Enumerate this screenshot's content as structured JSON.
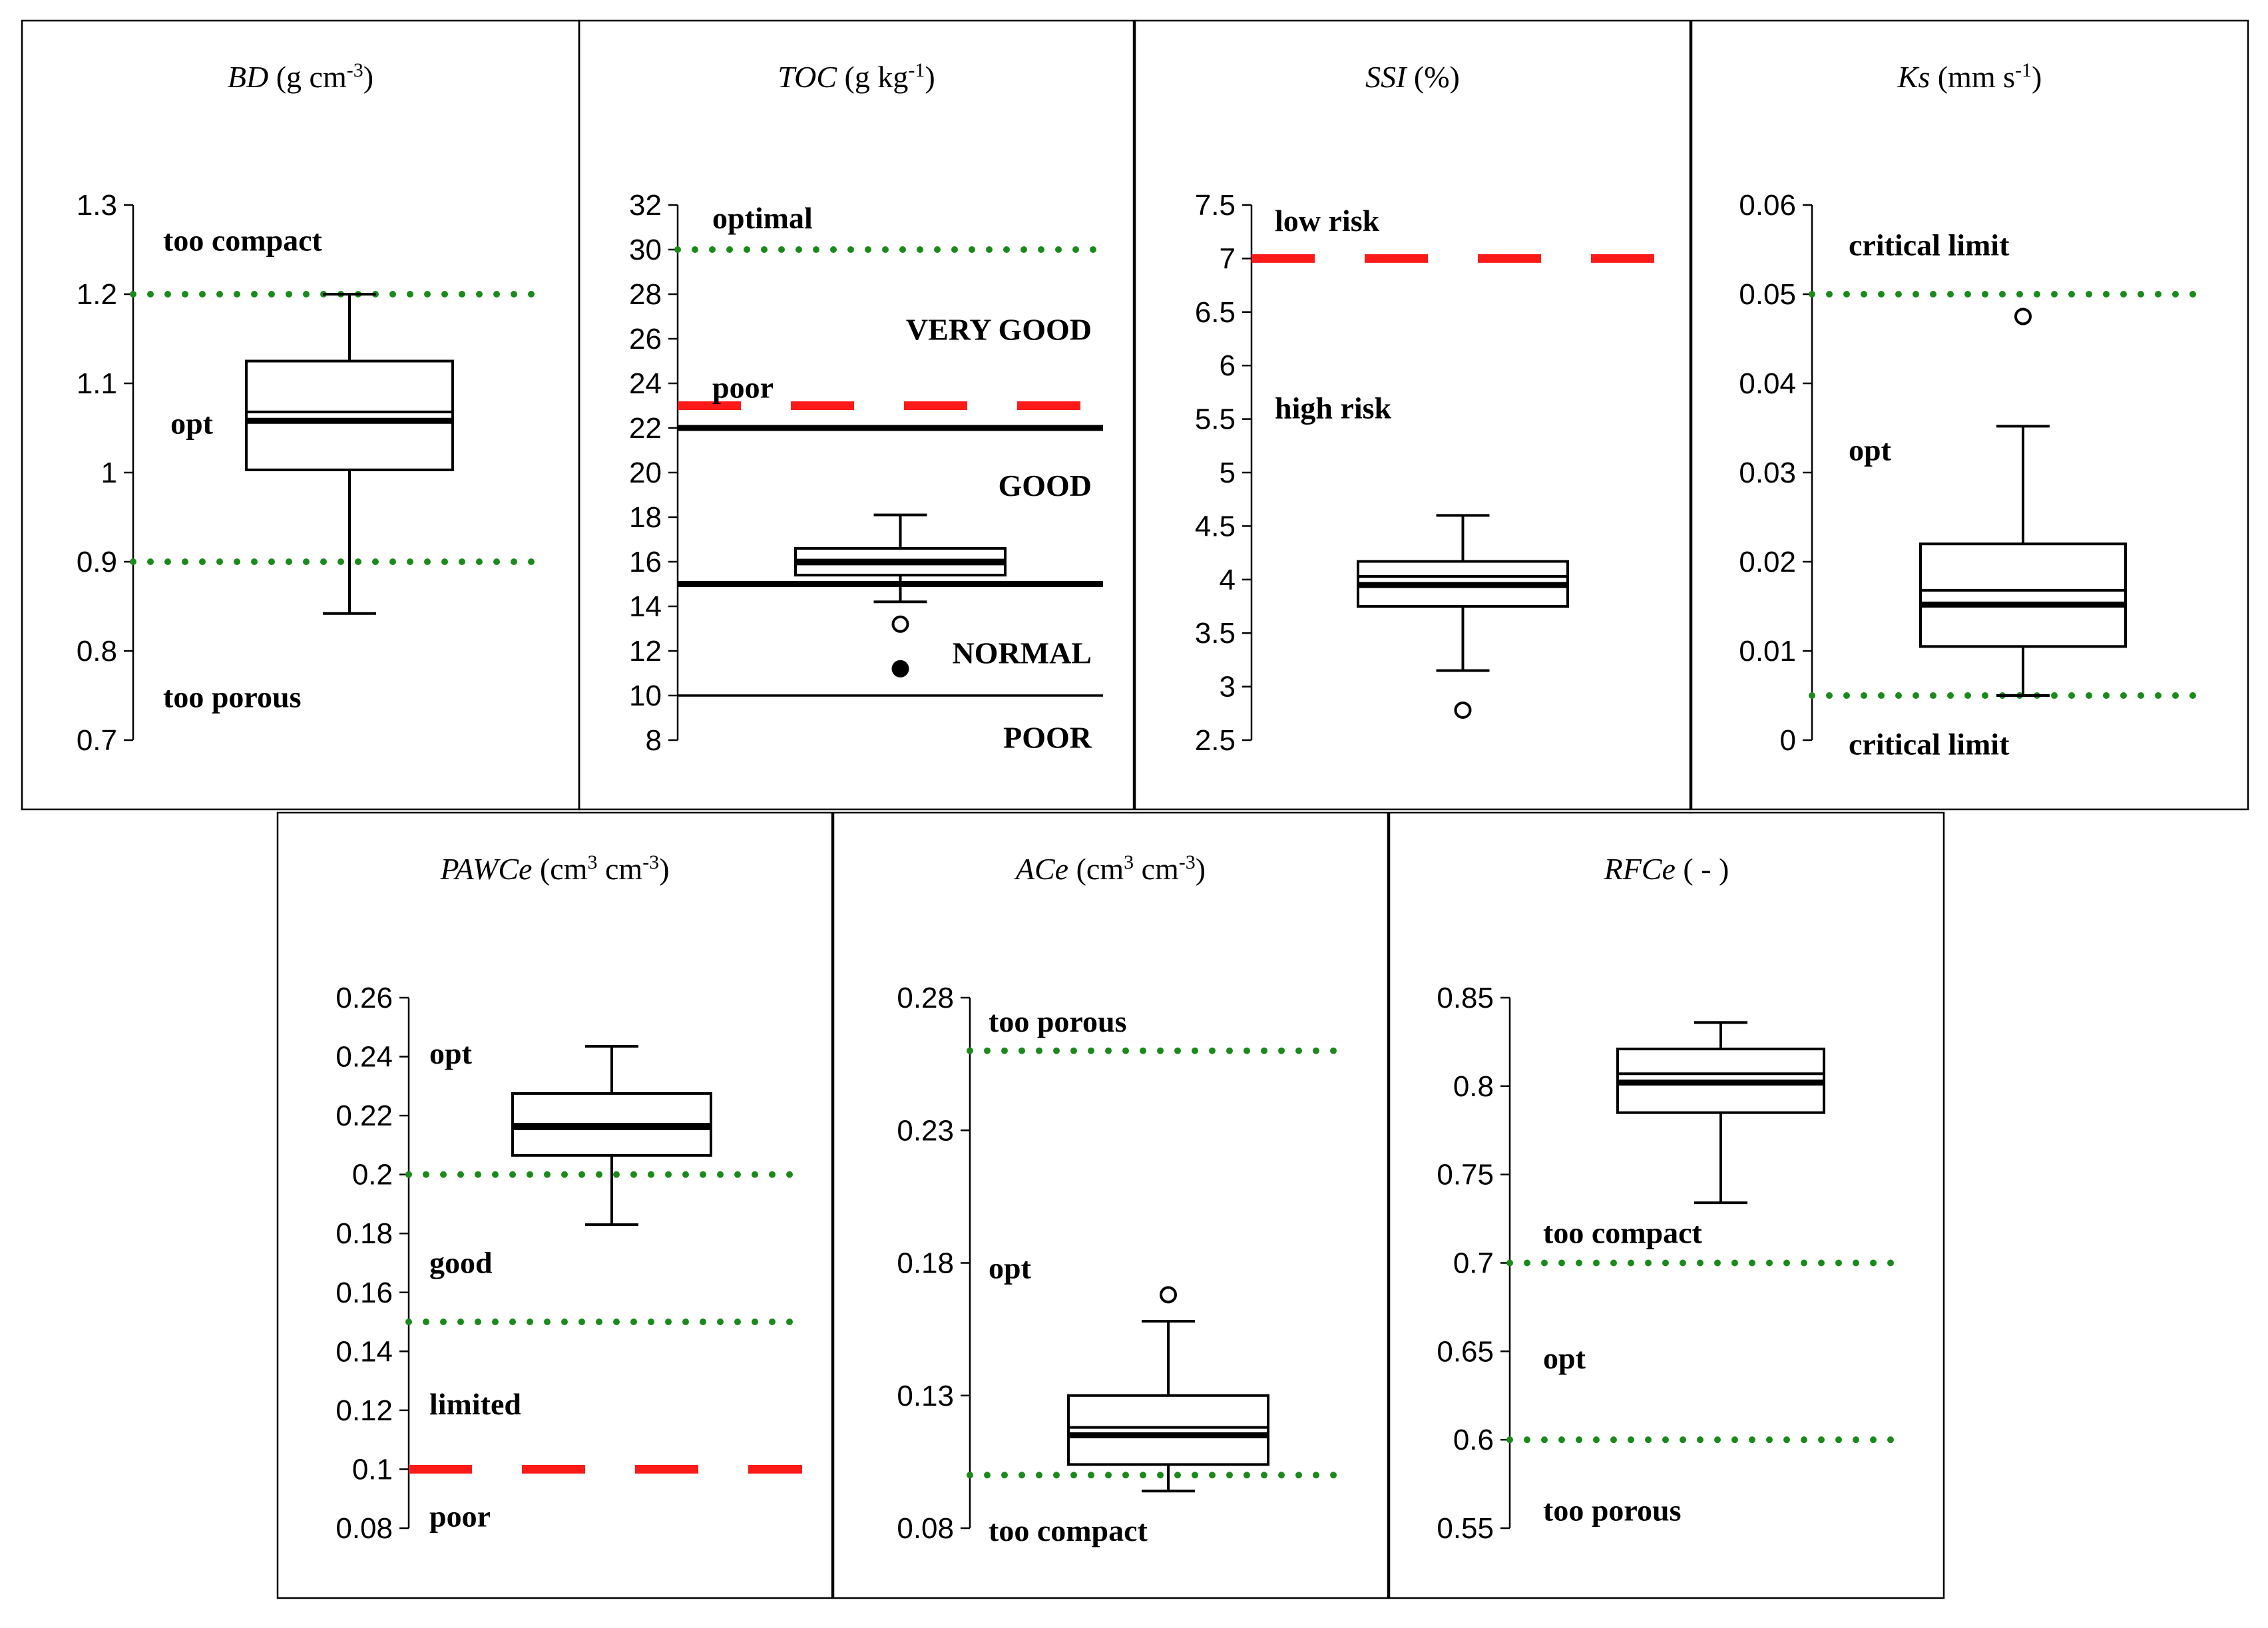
{
  "colors": {
    "optimal_dotted": "#1a8a1a",
    "critical_dashed": "#ff1a1a",
    "axis": "#000000"
  },
  "chart_data": [
    {
      "type": "box",
      "title_italic": "BD",
      "title_unit_pre": " (g cm",
      "title_unit_sup": "-3",
      "title_unit_post": ")",
      "ylim": [
        0.7,
        1.3
      ],
      "yticks": [
        "1.3",
        "1.2",
        "1.1",
        "1",
        "0.9",
        "0.8",
        "0.7"
      ],
      "ytick_values": [
        1.3,
        1.2,
        1.1,
        1.0,
        0.9,
        0.8,
        0.7
      ],
      "box": {
        "whisker_low": 0.842,
        "q1": 1.003,
        "median": 1.058,
        "mean": 1.068,
        "q3": 1.125,
        "whisker_high": 1.2
      },
      "outliers": [],
      "reference_lines": [
        {
          "y": 1.2,
          "style": "dotted"
        },
        {
          "y": 0.9,
          "style": "dotted"
        }
      ],
      "annotations": [
        {
          "text": "too compact",
          "y": 1.26
        },
        {
          "text": "opt",
          "y": 1.055,
          "align": "left-of-box"
        },
        {
          "text": "too porous",
          "y": 0.748
        }
      ]
    },
    {
      "type": "box",
      "title_italic": "TOC",
      "title_unit_pre": " (g kg",
      "title_unit_sup": "-1",
      "title_unit_post": ")",
      "ylim": [
        8,
        32
      ],
      "yticks": [
        "32",
        "30",
        "28",
        "26",
        "24",
        "22",
        "20",
        "18",
        "16",
        "14",
        "12",
        "10",
        "8"
      ],
      "ytick_values": [
        32,
        30,
        28,
        26,
        24,
        22,
        20,
        18,
        16,
        14,
        12,
        10,
        8
      ],
      "box": {
        "whisker_low": 14.2,
        "q1": 15.4,
        "median": 16.0,
        "mean": 15.9,
        "q3": 16.6,
        "whisker_high": 18.1
      },
      "outliers": [
        {
          "y": 13.2,
          "filled": false
        },
        {
          "y": 11.2,
          "filled": true
        }
      ],
      "reference_lines": [
        {
          "y": 30,
          "style": "dotted"
        },
        {
          "y": 23,
          "style": "dashed"
        },
        {
          "y": 22,
          "style": "solid-thick"
        },
        {
          "y": 15,
          "style": "solid-thick"
        },
        {
          "y": 10,
          "style": "solid-thin"
        }
      ],
      "annotations": [
        {
          "text": "optimal",
          "y": 31.4,
          "pos": "left"
        },
        {
          "text": "VERY GOOD",
          "y": 26.4,
          "pos": "right"
        },
        {
          "text": "poor",
          "y": 23.8,
          "pos": "left"
        },
        {
          "text": "GOOD",
          "y": 19.4,
          "pos": "right"
        },
        {
          "text": "NORMAL",
          "y": 11.9,
          "pos": "right"
        },
        {
          "text": "POOR",
          "y": 8.1,
          "pos": "right"
        }
      ]
    },
    {
      "type": "box",
      "title_italic": "SSI",
      "title_unit_pre": " (%)",
      "title_unit_sup": "",
      "title_unit_post": "",
      "ylim": [
        2.5,
        7.5
      ],
      "yticks": [
        "7.5",
        "7",
        "6.5",
        "6",
        "5.5",
        "5",
        "4.5",
        "4",
        "3.5",
        "3",
        "2.5"
      ],
      "ytick_values": [
        7.5,
        7,
        6.5,
        6,
        5.5,
        5,
        4.5,
        4,
        3.5,
        3,
        2.5
      ],
      "box": {
        "whisker_low": 3.15,
        "q1": 3.75,
        "median": 3.95,
        "mean": 4.03,
        "q3": 4.17,
        "whisker_high": 4.6
      },
      "outliers": [
        {
          "y": 2.78,
          "filled": false
        }
      ],
      "reference_lines": [
        {
          "y": 7,
          "style": "dashed"
        }
      ],
      "annotations": [
        {
          "text": "low risk",
          "y": 7.35,
          "pos": "left"
        },
        {
          "text": "high risk",
          "y": 5.6,
          "pos": "left"
        }
      ]
    },
    {
      "type": "box",
      "title_italic": "Ks",
      "title_unit_pre": " (mm s",
      "title_unit_sup": "-1",
      "title_unit_post": ")",
      "ylim": [
        0,
        0.06
      ],
      "yticks": [
        "0.06",
        "0.05",
        "0.04",
        "0.03",
        "0.02",
        "0.01",
        "0"
      ],
      "ytick_values": [
        0.06,
        0.05,
        0.04,
        0.03,
        0.02,
        0.01,
        0
      ],
      "box": {
        "whisker_low": 0.005,
        "q1": 0.0105,
        "median": 0.0152,
        "mean": 0.0168,
        "q3": 0.022,
        "whisker_high": 0.0352
      },
      "outliers": [
        {
          "y": 0.0475,
          "filled": false
        }
      ],
      "reference_lines": [
        {
          "y": 0.05,
          "style": "dotted"
        },
        {
          "y": 0.005,
          "style": "dotted"
        }
      ],
      "annotations": [
        {
          "text": "critical limit",
          "y": 0.0555,
          "pos": "left"
        },
        {
          "text": "opt",
          "y": 0.0325,
          "pos": "left"
        },
        {
          "text": "critical limit",
          "y": -0.0005,
          "pos": "left"
        }
      ]
    },
    {
      "type": "box",
      "title_italic": "PAWCe",
      "title_unit_pre": " (cm",
      "title_unit_sup": "3",
      "title_unit_post": " cm",
      "title_unit_sup2": "-3",
      "title_unit_post2": ")",
      "ylim": [
        0.08,
        0.26
      ],
      "yticks": [
        "0.26",
        "0.24",
        "0.22",
        "0.2",
        "0.18",
        "0.16",
        "0.14",
        "0.12",
        "0.1",
        "0.08"
      ],
      "ytick_values": [
        0.26,
        0.24,
        0.22,
        0.2,
        0.18,
        0.16,
        0.14,
        0.12,
        0.1,
        0.08
      ],
      "box": {
        "whisker_low": 0.183,
        "q1": 0.2065,
        "median": 0.2165,
        "mean": 0.2155,
        "q3": 0.2275,
        "whisker_high": 0.2435
      },
      "outliers": [],
      "reference_lines": [
        {
          "y": 0.2,
          "style": "dotted"
        },
        {
          "y": 0.15,
          "style": "dotted"
        },
        {
          "y": 0.1,
          "style": "dashed"
        }
      ],
      "annotations": [
        {
          "text": "opt",
          "y": 0.241,
          "pos": "left"
        },
        {
          "text": "good",
          "y": 0.17,
          "pos": "left"
        },
        {
          "text": "limited",
          "y": 0.122,
          "pos": "left"
        },
        {
          "text": "poor",
          "y": 0.084,
          "pos": "left"
        }
      ]
    },
    {
      "type": "box",
      "title_italic": "ACe",
      "title_unit_pre": " (cm",
      "title_unit_sup": "3",
      "title_unit_post": " cm",
      "title_unit_sup2": "-3",
      "title_unit_post2": ")",
      "ylim": [
        0.08,
        0.28
      ],
      "yticks": [
        "0.28",
        "0.23",
        "0.18",
        "0.13",
        "0.08"
      ],
      "ytick_values": [
        0.28,
        0.23,
        0.18,
        0.13,
        0.08
      ],
      "box": {
        "whisker_low": 0.094,
        "q1": 0.104,
        "median": 0.115,
        "mean": 0.118,
        "q3": 0.13,
        "whisker_high": 0.158
      },
      "outliers": [
        {
          "y": 0.168,
          "filled": false
        }
      ],
      "reference_lines": [
        {
          "y": 0.26,
          "style": "dotted"
        },
        {
          "y": 0.1,
          "style": "dotted"
        }
      ],
      "annotations": [
        {
          "text": "too porous",
          "y": 0.271,
          "pos": "left"
        },
        {
          "text": "opt",
          "y": 0.178,
          "pos": "left"
        },
        {
          "text": "too compact",
          "y": 0.079,
          "pos": "left"
        }
      ]
    },
    {
      "type": "box",
      "title_italic": "RFCe",
      "title_unit_pre": " ( - )",
      "title_unit_sup": "",
      "title_unit_post": "",
      "ylim": [
        0.55,
        0.85
      ],
      "yticks": [
        "0.85",
        "0.8",
        "0.75",
        "0.7",
        "0.65",
        "0.6",
        "0.55"
      ],
      "ytick_values": [
        0.85,
        0.8,
        0.75,
        0.7,
        0.65,
        0.6,
        0.55
      ],
      "box": {
        "whisker_low": 0.734,
        "q1": 0.785,
        "median": 0.802,
        "mean": 0.807,
        "q3": 0.821,
        "whisker_high": 0.836
      },
      "outliers": [],
      "reference_lines": [
        {
          "y": 0.7,
          "style": "dotted"
        },
        {
          "y": 0.6,
          "style": "dotted"
        }
      ],
      "annotations": [
        {
          "text": "too compact",
          "y": 0.717,
          "pos": "left"
        },
        {
          "text": "opt",
          "y": 0.646,
          "pos": "left"
        },
        {
          "text": "too porous",
          "y": 0.56,
          "pos": "left"
        }
      ]
    }
  ]
}
